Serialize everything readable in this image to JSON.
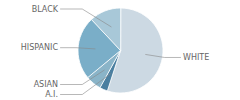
{
  "chart_data": {
    "type": "pie",
    "categories": [
      "WHITE",
      "A.I.",
      "ASIAN",
      "HISPANIC",
      "BLACK"
    ],
    "values": [
      55,
      3,
      6,
      24,
      12
    ],
    "colors": [
      "#ccd9e3",
      "#4a7fa0",
      "#8ab4c8",
      "#7aaec8",
      "#a8c8d8"
    ]
  }
}
